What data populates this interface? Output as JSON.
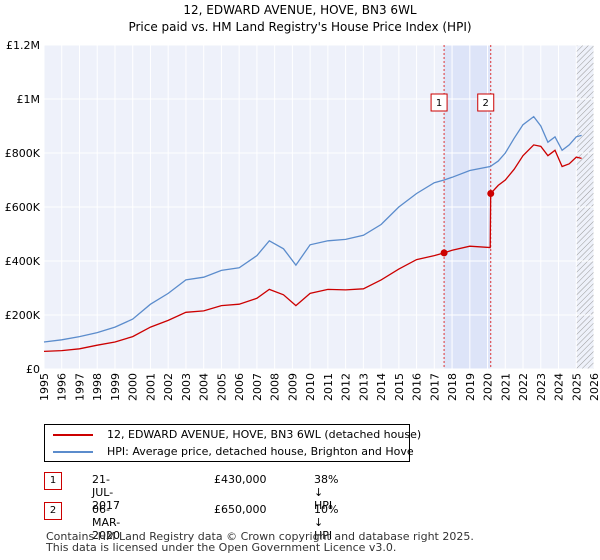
{
  "chart_data": {
    "type": "line",
    "title": "12, EDWARD AVENUE, HOVE, BN3 6WL",
    "subtitle": "Price paid vs. HM Land Registry's House Price Index (HPI)",
    "xlim": [
      1995,
      2026
    ],
    "ylim": [
      0,
      1200000
    ],
    "x_ticks": [
      1995,
      1996,
      1997,
      1998,
      1999,
      2000,
      2001,
      2002,
      2003,
      2004,
      2005,
      2006,
      2007,
      2008,
      2009,
      2010,
      2011,
      2012,
      2013,
      2014,
      2015,
      2016,
      2017,
      2018,
      2019,
      2020,
      2021,
      2022,
      2023,
      2024,
      2025,
      2026
    ],
    "y_ticks": [
      {
        "value": 0,
        "label": "£0"
      },
      {
        "value": 200000,
        "label": "£200K"
      },
      {
        "value": 400000,
        "label": "£400K"
      },
      {
        "value": 600000,
        "label": "£600K"
      },
      {
        "value": 800000,
        "label": "£800K"
      },
      {
        "value": 1000000,
        "label": "£1M"
      },
      {
        "value": 1200000,
        "label": "£1.2M"
      }
    ],
    "grid": true,
    "shaded_span": {
      "start": 2017.55,
      "end": 2020.18,
      "color": "#dde4f8"
    },
    "hatched_after": 2025.0,
    "series": [
      {
        "name": "12, EDWARD AVENUE, HOVE, BN3 6WL (detached house)",
        "color": "#cc0000",
        "x": [
          1995,
          1996,
          1997,
          1998,
          1999,
          2000,
          2001,
          2002,
          2003,
          2004,
          2005,
          2006,
          2007,
          2007.7,
          2008.5,
          2009.2,
          2010,
          2011,
          2012,
          2013,
          2014,
          2015,
          2016,
          2017,
          2017.55,
          2018,
          2019,
          2020.15,
          2020.18,
          2020.6,
          2021,
          2021.5,
          2022,
          2022.6,
          2023,
          2023.4,
          2023.8,
          2024.2,
          2024.6,
          2025,
          2025.3
        ],
        "values": [
          65000,
          68000,
          75000,
          88000,
          100000,
          120000,
          155000,
          180000,
          210000,
          215000,
          235000,
          240000,
          262000,
          295000,
          275000,
          235000,
          280000,
          295000,
          293000,
          297000,
          330000,
          370000,
          405000,
          420000,
          430000,
          440000,
          455000,
          450000,
          650000,
          680000,
          700000,
          740000,
          790000,
          830000,
          825000,
          790000,
          810000,
          750000,
          760000,
          785000,
          780000
        ]
      },
      {
        "name": "HPI: Average price, detached house, Brighton and Hove",
        "color": "#5b8ccc",
        "x": [
          1995,
          1996,
          1997,
          1998,
          1999,
          2000,
          2001,
          2002,
          2003,
          2004,
          2005,
          2006,
          2007,
          2007.7,
          2008.5,
          2009.2,
          2010,
          2011,
          2012,
          2013,
          2014,
          2015,
          2016,
          2017,
          2017.55,
          2018,
          2019,
          2020.15,
          2020.6,
          2021,
          2021.5,
          2022,
          2022.6,
          2023,
          2023.4,
          2023.8,
          2024.2,
          2024.6,
          2025,
          2025.3
        ],
        "values": [
          100000,
          108000,
          120000,
          135000,
          155000,
          185000,
          240000,
          280000,
          330000,
          340000,
          365000,
          375000,
          420000,
          475000,
          445000,
          385000,
          460000,
          475000,
          480000,
          495000,
          535000,
          600000,
          650000,
          690000,
          700000,
          710000,
          735000,
          750000,
          770000,
          800000,
          855000,
          905000,
          935000,
          900000,
          840000,
          860000,
          810000,
          830000,
          860000,
          865000
        ]
      }
    ],
    "sale_markers": [
      {
        "id": "1",
        "x": 2017.55,
        "value": 430000
      },
      {
        "id": "2",
        "x": 2020.18,
        "value": 650000
      }
    ]
  },
  "legend": [
    {
      "label": "12, EDWARD AVENUE, HOVE, BN3 6WL (detached house)",
      "color": "#cc0000"
    },
    {
      "label": "HPI: Average price, detached house, Brighton and Hove",
      "color": "#5b8ccc"
    }
  ],
  "sales": [
    {
      "id": "1",
      "date": "21-JUL-2017",
      "price": "£430,000",
      "hpi": "38% ↓ HPI"
    },
    {
      "id": "2",
      "date": "06-MAR-2020",
      "price": "£650,000",
      "hpi": "10% ↓ HPI"
    }
  ],
  "footer": {
    "line1": "Contains HM Land Registry data © Crown copyright and database right 2025.",
    "line2": "This data is licensed under the Open Government Licence v3.0."
  }
}
